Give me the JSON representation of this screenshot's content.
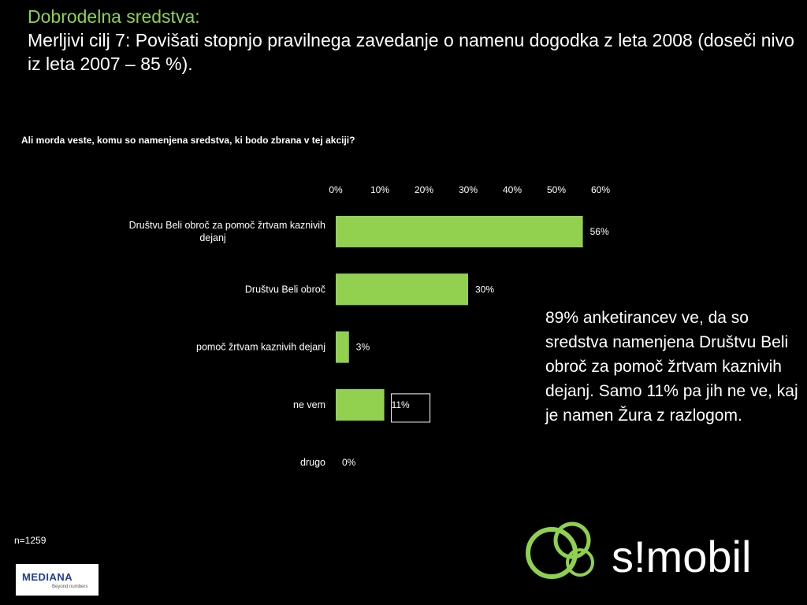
{
  "header": {
    "title": "Dobrodelna sredstva:",
    "subtitle": "Merljivi cilj 7: Povišati stopnjo pravilnega zavedanje o namenu dogodka z leta 2008 (doseči nivo iz leta 2007 – 85 %)."
  },
  "chart_data": {
    "type": "bar",
    "orientation": "horizontal",
    "title": "Ali morda veste, komu so namenjena sredstva, ki bodo zbrana v tej akciji?",
    "categories": [
      "Društvu Beli obroč za pomoč žrtvam kaznivih dejanj",
      "Društvu Beli obroč",
      "pomoč žrtvam kaznivih dejanj",
      "ne vem",
      "drugo"
    ],
    "values": [
      56,
      30,
      3,
      11,
      0
    ],
    "value_labels": [
      "56%",
      "30%",
      "3%",
      "11%",
      "0%"
    ],
    "x_ticks": [
      "0%",
      "10%",
      "20%",
      "30%",
      "40%",
      "50%",
      "60%"
    ],
    "xlim": [
      0,
      60
    ],
    "bar_color": "#92d050",
    "grid": false,
    "legend": "none"
  },
  "note": "89% anketirancev ve, da so sredstva namenjena Društvu Beli obroč za pomoč žrtvam kaznivih dejanj. Samo 11% pa jih ne ve, kaj je namen Žura z razlogom.",
  "sample": "n=1259",
  "logos": {
    "mediana": "MEDIANA",
    "mediana_tag": "Beyond numbers",
    "smobil": "s!mobil"
  },
  "colors": {
    "accent": "#8fd14f",
    "background": "#000000"
  }
}
